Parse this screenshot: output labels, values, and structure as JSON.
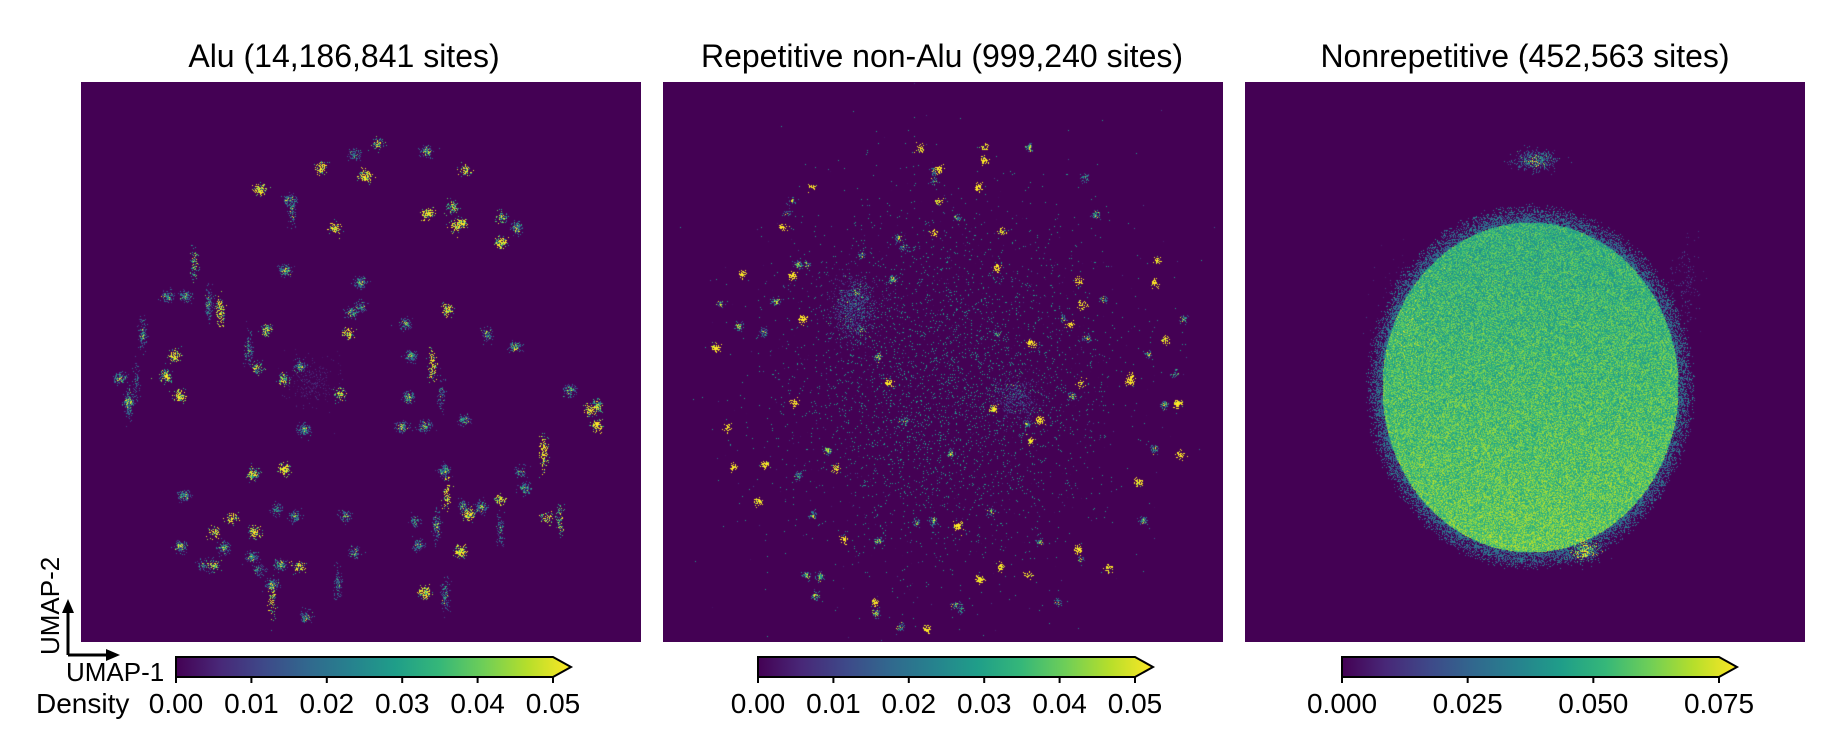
{
  "chart_data": [
    {
      "type": "heatmap",
      "title": "Alu (14,186,841 sites)",
      "xlabel": "UMAP-1",
      "ylabel": "UMAP-2",
      "colorbar": {
        "label": "Density",
        "range": [
          0,
          0.05
        ],
        "ticks": [
          "0.00",
          "0.01",
          "0.02",
          "0.03",
          "0.04",
          "0.05"
        ],
        "extend": "max",
        "colormap": "viridis"
      },
      "pattern": "many small scattered clusters"
    },
    {
      "type": "heatmap",
      "title": "Repetitive non-Alu (999,240 sites)",
      "colorbar": {
        "range": [
          0,
          0.05
        ],
        "ticks": [
          "0.00",
          "0.01",
          "0.02",
          "0.03",
          "0.04",
          "0.05"
        ],
        "extend": "max",
        "colormap": "viridis"
      },
      "pattern": "diffuse central cloud with surrounding small clusters"
    },
    {
      "type": "heatmap",
      "title": "Nonrepetitive (452,563 sites)",
      "colorbar": {
        "range": [
          0,
          0.075
        ],
        "ticks": [
          "0.000",
          "0.025",
          "0.050",
          "0.075"
        ],
        "extend": "max",
        "colormap": "viridis"
      },
      "pattern": "single dense central blob"
    }
  ],
  "colors": {
    "background": "#440154",
    "viridis": [
      "#440154",
      "#482878",
      "#3e4989",
      "#31688e",
      "#26828e",
      "#1f9e89",
      "#35b779",
      "#6ece58",
      "#b5de2b",
      "#fde725"
    ]
  }
}
